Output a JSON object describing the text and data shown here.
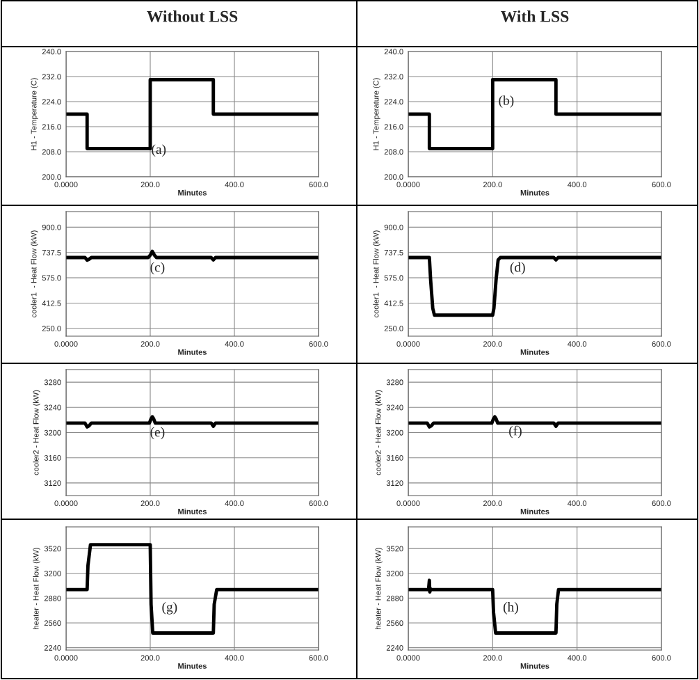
{
  "chart_data": [
    {
      "type": "line",
      "title": "Without LSS",
      "xlabel": "Minutes",
      "ylabel": "H1 - Temperature (C)",
      "color": "#000000",
      "grid": true,
      "marker": "none",
      "line_style": "solid",
      "xlim": [
        0,
        600
      ],
      "xticks": [
        {
          "value": 0,
          "label": "0.0000"
        },
        {
          "value": 200,
          "label": "200.0"
        },
        {
          "value": 400,
          "label": "400.0"
        },
        {
          "value": 600,
          "label": "600.0"
        }
      ],
      "ylim": [
        200,
        240
      ],
      "yticks": [
        {
          "value": 200,
          "label": "200.0"
        },
        {
          "value": 208,
          "label": "208.0"
        },
        {
          "value": 216,
          "label": "216.0"
        },
        {
          "value": 224,
          "label": "224.0"
        },
        {
          "value": 232,
          "label": "232.0"
        },
        {
          "value": 240,
          "label": "240.0"
        }
      ],
      "x": [
        0,
        50,
        50,
        200,
        200,
        350,
        350,
        600
      ],
      "values": [
        220,
        220,
        209,
        209,
        231,
        231,
        220,
        220
      ],
      "annotations": [
        "(a)"
      ]
    },
    {
      "type": "line",
      "title": "With LSS",
      "xlabel": "Minutes",
      "ylabel": "H1 - Temperature (C)",
      "color": "#000000",
      "grid": true,
      "marker": "none",
      "line_style": "solid",
      "xlim": [
        0,
        600
      ],
      "xticks": [
        {
          "value": 0,
          "label": "0.0000"
        },
        {
          "value": 200,
          "label": "200.0"
        },
        {
          "value": 400,
          "label": "400.0"
        },
        {
          "value": 600,
          "label": "600.0"
        }
      ],
      "ylim": [
        200,
        240
      ],
      "yticks": [
        {
          "value": 200,
          "label": "200.0"
        },
        {
          "value": 208,
          "label": "208.0"
        },
        {
          "value": 216,
          "label": "216.0"
        },
        {
          "value": 224,
          "label": "224.0"
        },
        {
          "value": 232,
          "label": "232.0"
        },
        {
          "value": 240,
          "label": "240.0"
        }
      ],
      "x": [
        0,
        50,
        50,
        200,
        200,
        350,
        350,
        600
      ],
      "values": [
        220,
        220,
        209,
        209,
        231,
        231,
        220,
        220
      ],
      "annotations": [
        "(b)"
      ]
    },
    {
      "type": "line",
      "xlabel": "Minutes",
      "ylabel": "cooler1  - Heat Flow (kW)",
      "color": "#000000",
      "grid": true,
      "marker": "none",
      "line_style": "solid",
      "xlim": [
        0,
        600
      ],
      "xticks": [
        {
          "value": 0,
          "label": "0.0000"
        },
        {
          "value": 200,
          "label": "200.0"
        },
        {
          "value": 400,
          "label": "400.0"
        },
        {
          "value": 600,
          "label": "600.0"
        }
      ],
      "ylim": [
        200,
        1000
      ],
      "yticks": [
        {
          "value": 250,
          "label": "250.0"
        },
        {
          "value": 412.5,
          "label": "412.5"
        },
        {
          "value": 575,
          "label": "575.0"
        },
        {
          "value": 737.5,
          "label": "737.5"
        },
        {
          "value": 900,
          "label": "900.0"
        }
      ],
      "x": [
        0,
        45,
        50,
        55,
        60,
        195,
        200,
        205,
        210,
        215,
        345,
        350,
        355,
        600
      ],
      "values": [
        705,
        705,
        688,
        695,
        705,
        705,
        720,
        745,
        720,
        705,
        705,
        690,
        705,
        705
      ],
      "annotations": [
        "(c)"
      ]
    },
    {
      "type": "line",
      "xlabel": "Minutes",
      "ylabel": "cooler1  - Heat Flow (kW)",
      "color": "#000000",
      "grid": true,
      "marker": "none",
      "line_style": "solid",
      "xlim": [
        0,
        600
      ],
      "xticks": [
        {
          "value": 0,
          "label": "0.0000"
        },
        {
          "value": 200,
          "label": "200.0"
        },
        {
          "value": 400,
          "label": "400.0"
        },
        {
          "value": 600,
          "label": "600.0"
        }
      ],
      "ylim": [
        200,
        1000
      ],
      "yticks": [
        {
          "value": 250,
          "label": "250.0"
        },
        {
          "value": 412.5,
          "label": "412.5"
        },
        {
          "value": 575,
          "label": "575.0"
        },
        {
          "value": 737.5,
          "label": "737.5"
        },
        {
          "value": 900,
          "label": "900.0"
        }
      ],
      "x": [
        0,
        50,
        53,
        58,
        62,
        200,
        203,
        208,
        213,
        218,
        345,
        350,
        355,
        600
      ],
      "values": [
        705,
        705,
        560,
        380,
        335,
        335,
        380,
        560,
        690,
        705,
        705,
        690,
        705,
        705
      ],
      "annotations": [
        "(d)"
      ]
    },
    {
      "type": "line",
      "xlabel": "Minutes",
      "ylabel": "cooler2 - Heat Flow (kW)",
      "color": "#000000",
      "grid": true,
      "marker": "none",
      "line_style": "solid",
      "xlim": [
        0,
        600
      ],
      "xticks": [
        {
          "value": 0,
          "label": "0.0000"
        },
        {
          "value": 200,
          "label": "200.0"
        },
        {
          "value": 400,
          "label": "400.0"
        },
        {
          "value": 600,
          "label": "600.0"
        }
      ],
      "ylim": [
        3100,
        3300
      ],
      "yticks": [
        3120,
        3160,
        3200,
        3240,
        3280
      ],
      "x": [
        0,
        45,
        50,
        55,
        60,
        198,
        202,
        205,
        208,
        212,
        345,
        350,
        355,
        600
      ],
      "values": [
        3215,
        3215,
        3209,
        3211,
        3215,
        3215,
        3222,
        3225,
        3222,
        3215,
        3215,
        3210,
        3215,
        3215
      ],
      "annotations": [
        "(e)"
      ]
    },
    {
      "type": "line",
      "xlabel": "Minutes",
      "ylabel": "cooler2 - Heat Flow (kW)",
      "color": "#000000",
      "grid": true,
      "marker": "none",
      "line_style": "solid",
      "xlim": [
        0,
        600
      ],
      "xticks": [
        {
          "value": 0,
          "label": "0.0000"
        },
        {
          "value": 200,
          "label": "200.0"
        },
        {
          "value": 400,
          "label": "400.0"
        },
        {
          "value": 600,
          "label": "600.0"
        }
      ],
      "ylim": [
        3100,
        3300
      ],
      "yticks": [
        3120,
        3160,
        3200,
        3240,
        3280
      ],
      "x": [
        0,
        45,
        50,
        55,
        60,
        198,
        202,
        205,
        208,
        212,
        345,
        350,
        355,
        600
      ],
      "values": [
        3215,
        3215,
        3209,
        3211,
        3215,
        3215,
        3222,
        3225,
        3222,
        3215,
        3215,
        3210,
        3215,
        3215
      ],
      "annotations": [
        "(f)"
      ]
    },
    {
      "type": "line",
      "xlabel": "Minutes",
      "ylabel": "heater - Heat Flow (kW)",
      "color": "#000000",
      "grid": true,
      "marker": "none",
      "line_style": "solid",
      "xlim": [
        0,
        600
      ],
      "xticks": [
        {
          "value": 0,
          "label": "0.0000"
        },
        {
          "value": 200,
          "label": "200.0"
        },
        {
          "value": 400,
          "label": "400.0"
        },
        {
          "value": 600,
          "label": "600.0"
        }
      ],
      "ylim": [
        2210,
        3800
      ],
      "yticks": [
        2240,
        2560,
        2880,
        3200,
        3520
      ],
      "x": [
        0,
        50,
        52,
        58,
        200,
        202,
        206,
        350,
        352,
        358,
        600
      ],
      "values": [
        2990,
        2990,
        3300,
        3570,
        3570,
        2800,
        2430,
        2430,
        2800,
        2990,
        2990
      ],
      "annotations": [
        "(g)"
      ]
    },
    {
      "type": "line",
      "xlabel": "Minutes",
      "ylabel": "heater - Heat Flow (kW)",
      "color": "#000000",
      "grid": true,
      "marker": "none",
      "line_style": "solid",
      "xlim": [
        0,
        600
      ],
      "xticks": [
        {
          "value": 0,
          "label": "0.0000"
        },
        {
          "value": 200,
          "label": "200.0"
        },
        {
          "value": 400,
          "label": "400.0"
        },
        {
          "value": 600,
          "label": "600.0"
        }
      ],
      "ylim": [
        2210,
        3800
      ],
      "yticks": [
        2240,
        2560,
        2880,
        3200,
        3520
      ],
      "x": [
        0,
        48,
        50,
        51,
        53,
        55,
        200,
        202,
        207,
        350,
        352,
        356,
        600
      ],
      "values": [
        2990,
        2990,
        3110,
        2960,
        3000,
        2990,
        2990,
        2700,
        2430,
        2430,
        2800,
        2990,
        2990
      ],
      "annotations": [
        "(h)"
      ]
    }
  ]
}
